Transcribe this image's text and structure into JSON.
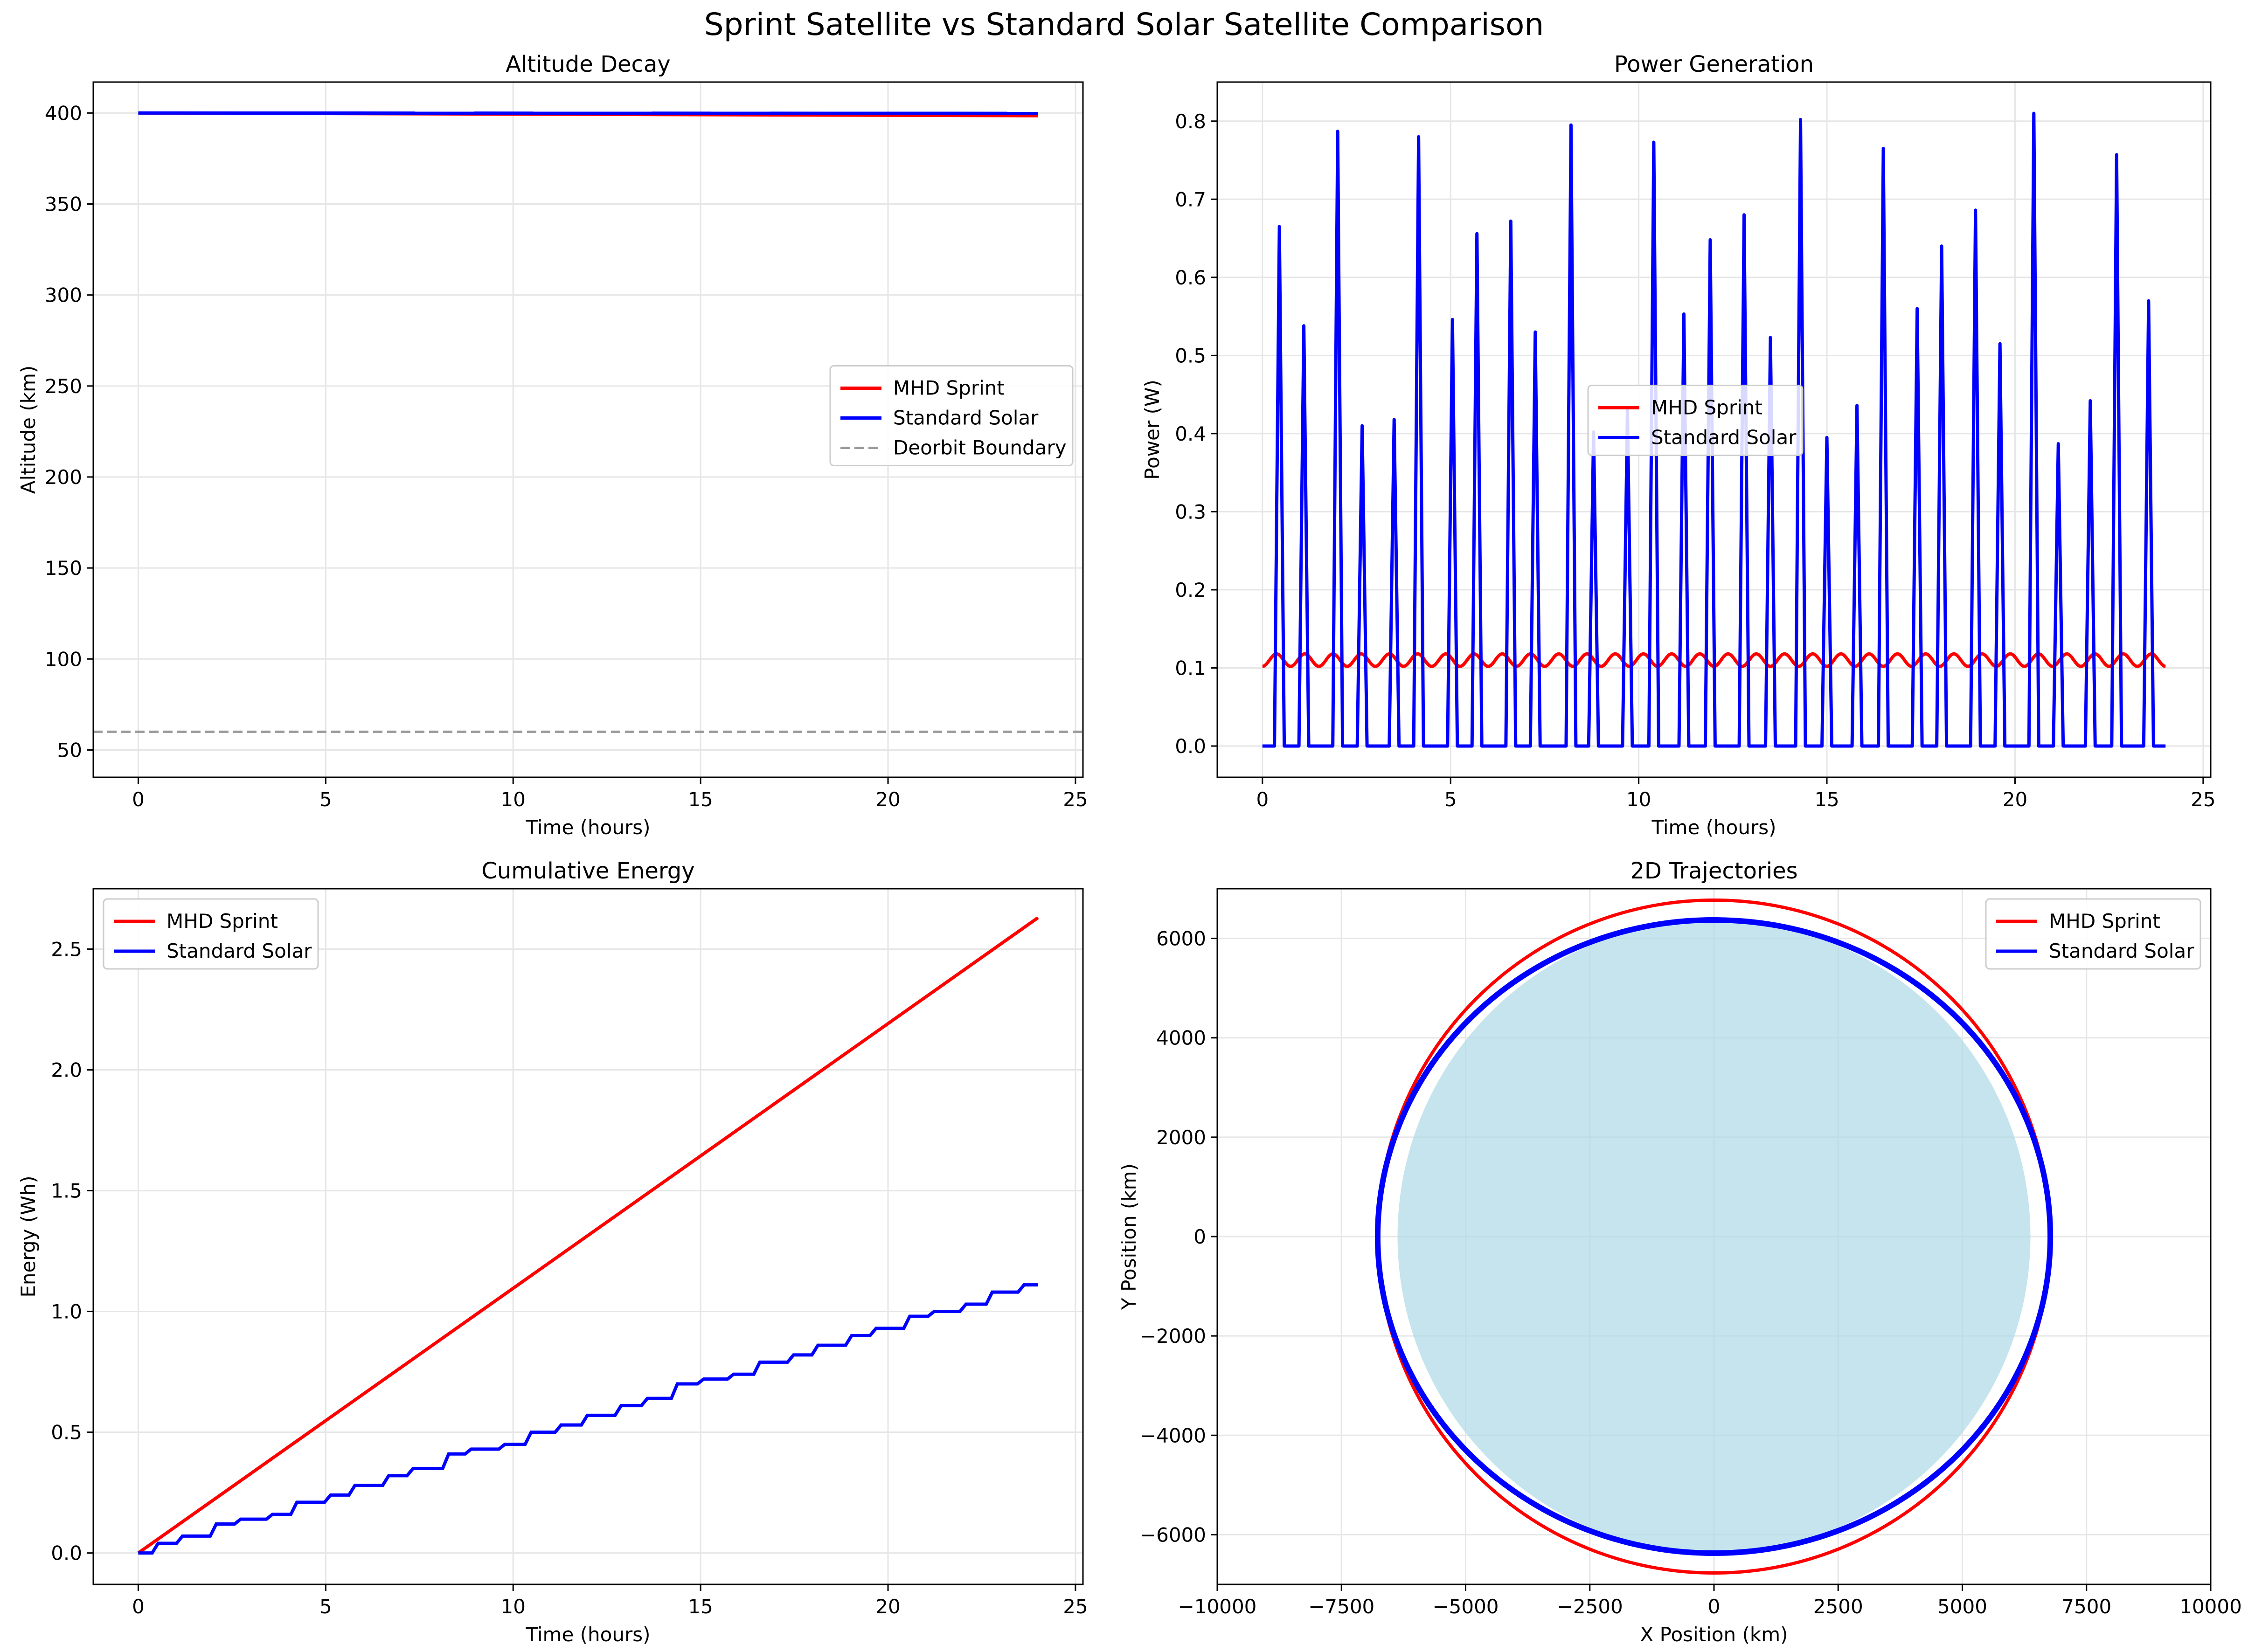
{
  "figure": {
    "title": "Sprint Satellite vs Standard Solar Satellite Comparison"
  },
  "colors": {
    "mhd": "#ff0000",
    "solar": "#0000ff",
    "deorbit": "#999999",
    "earth": "#add8e6",
    "grid": "#e6e6e6"
  },
  "chart_data": [
    {
      "id": "altitude",
      "type": "line",
      "title": "Altitude Decay",
      "xlabel": "Time (hours)",
      "ylabel": "Altitude (km)",
      "xlim": [
        -1.2,
        25.2
      ],
      "ylim": [
        35,
        417
      ],
      "xticks": [
        0,
        5,
        10,
        15,
        20,
        25
      ],
      "yticks": [
        50,
        100,
        150,
        200,
        250,
        300,
        350,
        400
      ],
      "grid": true,
      "legend": {
        "position": "center-right",
        "entries": [
          "MHD Sprint",
          "Standard Solar",
          "Deorbit Boundary"
        ]
      },
      "series": [
        {
          "name": "MHD Sprint",
          "color": "#ff0000",
          "x": [
            0,
            24
          ],
          "y": [
            400,
            398.5
          ]
        },
        {
          "name": "Standard Solar",
          "color": "#0000ff",
          "x": [
            0,
            24
          ],
          "y": [
            400,
            399.8
          ]
        },
        {
          "name": "Deorbit Boundary",
          "color": "#999999",
          "dashed": true,
          "y_constant": 60
        }
      ]
    },
    {
      "id": "power",
      "type": "line",
      "title": "Power Generation",
      "xlabel": "Time (hours)",
      "ylabel": "Power (W)",
      "xlim": [
        -1.2,
        25.2
      ],
      "ylim": [
        -0.04,
        0.85
      ],
      "xticks": [
        0,
        5,
        10,
        15,
        20,
        25
      ],
      "yticks": [
        0.0,
        0.1,
        0.2,
        0.3,
        0.4,
        0.5,
        0.6,
        0.7,
        0.8
      ],
      "grid": true,
      "legend": {
        "position": "center",
        "entries": [
          "MHD Sprint",
          "Standard Solar"
        ]
      },
      "series": [
        {
          "name": "MHD Sprint",
          "color": "#ff0000",
          "baseline": 0.11,
          "amplitude": 0.008,
          "period_hours": 0.75,
          "x_range": [
            0,
            24
          ]
        },
        {
          "name": "Standard Solar",
          "color": "#0000ff",
          "peak_times": [
            0.45,
            1.1,
            2.0,
            2.65,
            3.5,
            4.15,
            5.05,
            5.7,
            6.6,
            7.25,
            8.2,
            8.8,
            9.7,
            10.4,
            11.2,
            11.9,
            12.8,
            13.5,
            14.3,
            15.0,
            15.8,
            16.5,
            17.4,
            18.05,
            18.95,
            19.6,
            20.5,
            21.15,
            22.0,
            22.7,
            23.55
          ],
          "peak_values": [
            0.665,
            0.538,
            0.787,
            0.41,
            0.418,
            0.78,
            0.546,
            0.656,
            0.672,
            0.53,
            0.795,
            0.402,
            0.43,
            0.773,
            0.553,
            0.648,
            0.68,
            0.523,
            0.802,
            0.395,
            0.436,
            0.765,
            0.56,
            0.64,
            0.686,
            0.515,
            0.81,
            0.387,
            0.442,
            0.757,
            0.57
          ],
          "x_range": [
            0,
            24
          ]
        }
      ]
    },
    {
      "id": "energy",
      "type": "line",
      "title": "Cumulative Energy",
      "xlabel": "Time (hours)",
      "ylabel": "Energy (Wh)",
      "xlim": [
        -1.2,
        25.2
      ],
      "ylim": [
        -0.13,
        2.75
      ],
      "xticks": [
        0,
        5,
        10,
        15,
        20,
        25
      ],
      "yticks": [
        0.0,
        0.5,
        1.0,
        1.5,
        2.0,
        2.5
      ],
      "grid": true,
      "legend": {
        "position": "top-left",
        "entries": [
          "MHD Sprint",
          "Standard Solar"
        ]
      },
      "series": [
        {
          "name": "MHD Sprint",
          "color": "#ff0000",
          "x": [
            0,
            24
          ],
          "y": [
            0,
            2.63
          ]
        },
        {
          "name": "Standard Solar",
          "color": "#0000ff",
          "step_times": [
            0.0,
            0.45,
            1.1,
            2.0,
            2.65,
            3.5,
            4.15,
            5.05,
            5.7,
            6.6,
            7.25,
            8.2,
            8.8,
            9.7,
            10.4,
            11.2,
            11.9,
            12.8,
            13.5,
            14.3,
            15.0,
            15.8,
            16.5,
            17.4,
            18.05,
            18.95,
            19.6,
            20.5,
            21.15,
            22.0,
            22.7,
            23.55
          ],
          "step_values": [
            0.0,
            0.04,
            0.07,
            0.12,
            0.14,
            0.16,
            0.21,
            0.24,
            0.28,
            0.32,
            0.35,
            0.41,
            0.43,
            0.45,
            0.5,
            0.53,
            0.57,
            0.61,
            0.64,
            0.7,
            0.72,
            0.74,
            0.79,
            0.82,
            0.86,
            0.9,
            0.93,
            0.98,
            1.0,
            1.03,
            1.08,
            1.11
          ],
          "x_end": 24.0
        }
      ]
    },
    {
      "id": "trajectory",
      "type": "scatter",
      "title": "2D Trajectories",
      "xlabel": "X Position (km)",
      "ylabel": "Y Position (km)",
      "xlim": [
        -10000,
        10000
      ],
      "ylim": [
        -7000,
        7000
      ],
      "xticks": [
        -10000,
        -7500,
        -5000,
        -2500,
        0,
        2500,
        5000,
        7500,
        10000
      ],
      "yticks": [
        -6000,
        -4000,
        -2000,
        0,
        2000,
        4000,
        6000
      ],
      "grid": true,
      "legend": {
        "position": "top-right",
        "entries": [
          "MHD Sprint",
          "Standard Solar"
        ]
      },
      "earth_radius_km": 6371,
      "orbit_radius_km": 6771,
      "series": [
        {
          "name": "MHD Sprint",
          "color": "#ff0000",
          "radius": 6770
        },
        {
          "name": "Standard Solar",
          "color": "#0000ff",
          "radius": 6771
        }
      ]
    }
  ]
}
